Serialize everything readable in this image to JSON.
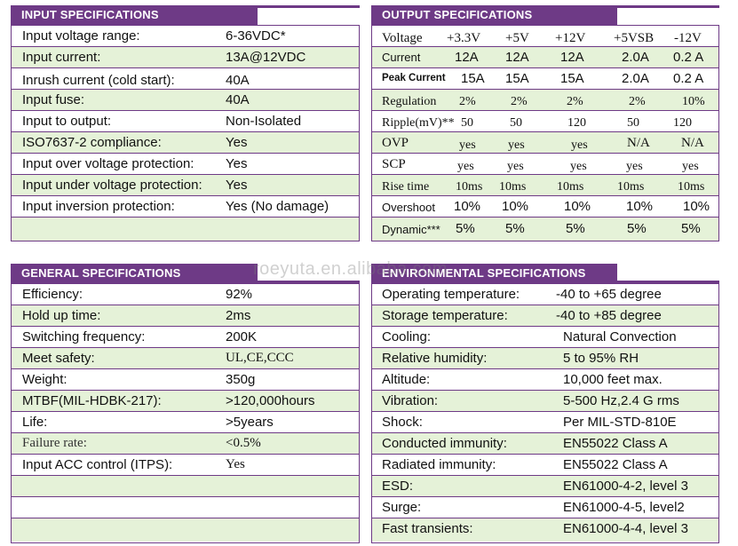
{
  "input": {
    "title": "INPUT SPECIFICATIONS",
    "rows": [
      {
        "label": "Input voltage range:",
        "value": "6-36VDC*"
      },
      {
        "label": "Input current:",
        "value": "13A@12VDC"
      },
      {
        "label": "Inrush current (cold start):",
        "value": "40A"
      },
      {
        "label": "Input fuse:",
        "value": "40A"
      },
      {
        "label": "Input to output:",
        "value": "Non-Isolated"
      },
      {
        "label": "ISO7637-2 compliance:",
        "value": "Yes"
      },
      {
        "label": "Input over voltage protection:",
        "value": "Yes"
      },
      {
        "label": "Input under voltage protection:",
        "value": "Yes"
      },
      {
        "label": "Input inversion protection:",
        "value": "Yes (No damage)"
      },
      {
        "label": "",
        "value": ""
      }
    ]
  },
  "output": {
    "title": "OUTPUT SPECIFICATIONS",
    "rows": [
      {
        "label": "Voltage",
        "values": [
          "+3.3V",
          "+5V",
          "+12V",
          "+5VSB",
          "-12V"
        ]
      },
      {
        "label": "Current",
        "values": [
          "12A",
          "12A",
          "12A",
          "2.0A",
          "0.2 A"
        ]
      },
      {
        "label": "Peak Current",
        "values": [
          "15A",
          "15A",
          "15A",
          "2.0A",
          "0.2 A"
        ]
      },
      {
        "label": "Regulation",
        "values": [
          "2%",
          "2%",
          "2%",
          "2%",
          "10%"
        ]
      },
      {
        "label": "Ripple(mV)**",
        "values": [
          "50",
          "50",
          "120",
          "50",
          "120"
        ]
      },
      {
        "label": "OVP",
        "values": [
          "yes",
          "yes",
          "yes",
          "N/A",
          "N/A"
        ]
      },
      {
        "label": "SCP",
        "values": [
          "yes",
          "yes",
          "yes",
          "yes",
          "yes"
        ]
      },
      {
        "label": "Rise time",
        "values": [
          "10ms",
          "10ms",
          "10ms",
          "10ms",
          "10ms"
        ]
      },
      {
        "label": "Overshoot",
        "values": [
          "10%",
          "10%",
          "10%",
          "10%",
          "10%"
        ]
      },
      {
        "label": "Dynamic***",
        "values": [
          "5%",
          "5%",
          "5%",
          "5%",
          "5%"
        ]
      }
    ]
  },
  "general": {
    "title": "GENERAL SPECIFICATIONS",
    "rows": [
      {
        "label": "Efficiency:",
        "value": "92%"
      },
      {
        "label": "Hold up time:",
        "value": "2ms"
      },
      {
        "label": "Switching frequency:",
        "value": "200K"
      },
      {
        "label": "Meet safety:",
        "value": "UL,CE,CCC"
      },
      {
        "label": "Weight:",
        "value": "350g"
      },
      {
        "label": "MTBF(MIL-HDBK-217):",
        "value": ">120,000hours"
      },
      {
        "label": "Life:",
        "value": ">5years"
      },
      {
        "label": "Failure rate:",
        "value": "<0.5%"
      },
      {
        "label": "Input ACC control (ITPS):",
        "value": "Yes"
      },
      {
        "label": "",
        "value": ""
      },
      {
        "label": "",
        "value": ""
      },
      {
        "label": "",
        "value": ""
      }
    ]
  },
  "environmental": {
    "title": "ENVIRONMENTAL SPECIFICATIONS",
    "rows": [
      {
        "label": "Operating temperature:",
        "value": "-40  to +65 degree"
      },
      {
        "label": "Storage temperature:",
        "value": "-40  to +85 degree"
      },
      {
        "label": "Cooling:",
        "value": "Natural Convection"
      },
      {
        "label": "Relative humidity:",
        "value": "5 to 95% RH"
      },
      {
        "label": "Altitude:",
        "value": "10,000 feet max."
      },
      {
        "label": "Vibration:",
        "value": "5-500 Hz,2.4 G rms"
      },
      {
        "label": "Shock:",
        "value": "Per MIL-STD-810E"
      },
      {
        "label": "Conducted immunity:",
        "value": "EN55022 Class A"
      },
      {
        "label": "Radiated immunity:",
        "value": "EN55022 Class A"
      },
      {
        "label": "ESD:",
        "value": "EN61000-4-2, level 3"
      },
      {
        "label": "Surge:",
        "value": "EN61000-4-5, level2"
      },
      {
        "label": "Fast transients:",
        "value": "EN61000-4-4, level 3"
      }
    ]
  },
  "watermark": "roeyuta.en.alibaba.com",
  "colors": {
    "header": "#6e3a86",
    "alt_row": "#e5f2d8",
    "border": "#6e3a86"
  }
}
